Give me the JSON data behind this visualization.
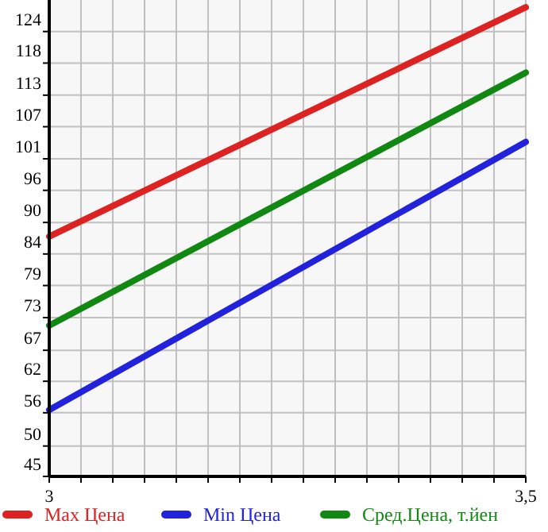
{
  "chart_data": {
    "type": "line",
    "x": [
      3,
      3.5
    ],
    "series": [
      {
        "name": "Max Цена",
        "color": "#dd2222",
        "values": [
          87.6,
          128.3
        ]
      },
      {
        "name": "Min Цена",
        "color": "#2222dd",
        "values": [
          56.8,
          104.4
        ]
      },
      {
        "name": "Сред.Цена, т.йен",
        "color": "#118811",
        "values": [
          71.8,
          116.7
        ]
      }
    ],
    "xlim": [
      3,
      3.5
    ],
    "xticks": [
      3,
      {
        "value": 3.0333,
        "label": null
      },
      {
        "value": 3.0667,
        "label": null
      },
      {
        "value": 3.1,
        "label": null
      },
      {
        "value": 3.1333,
        "label": null
      },
      {
        "value": 3.1667,
        "label": null
      },
      {
        "value": 3.2,
        "label": null
      },
      {
        "value": 3.2333,
        "label": null
      },
      {
        "value": 3.2667,
        "label": null
      },
      {
        "value": 3.3,
        "label": null
      },
      {
        "value": 3.3333,
        "label": null
      },
      {
        "value": 3.3667,
        "label": null
      },
      {
        "value": 3.4,
        "label": null
      },
      {
        "value": 3.4333,
        "label": null
      },
      {
        "value": 3.4667,
        "label": null
      },
      {
        "value": 3.5,
        "label": "3,5"
      }
    ],
    "ylim": [
      45,
      129.6
    ],
    "yticks": [
      45,
      {
        "value": 50.4,
        "label": "50"
      },
      {
        "value": 56.3,
        "label": "56"
      },
      {
        "value": 61.9,
        "label": "62"
      },
      {
        "value": 67.4,
        "label": "67"
      },
      {
        "value": 73.2,
        "label": "73"
      },
      {
        "value": 78.9,
        "label": "79"
      },
      {
        "value": 84.5,
        "label": "84"
      },
      {
        "value": 90.1,
        "label": "90"
      },
      {
        "value": 95.8,
        "label": "96"
      },
      {
        "value": 101.4,
        "label": "101"
      },
      {
        "value": 107.1,
        "label": "107"
      },
      {
        "value": 112.7,
        "label": "113"
      },
      {
        "value": 118.4,
        "label": "118"
      },
      124
    ],
    "grid": true,
    "legend": "bottom",
    "marker": "none",
    "line_style": "solid"
  }
}
